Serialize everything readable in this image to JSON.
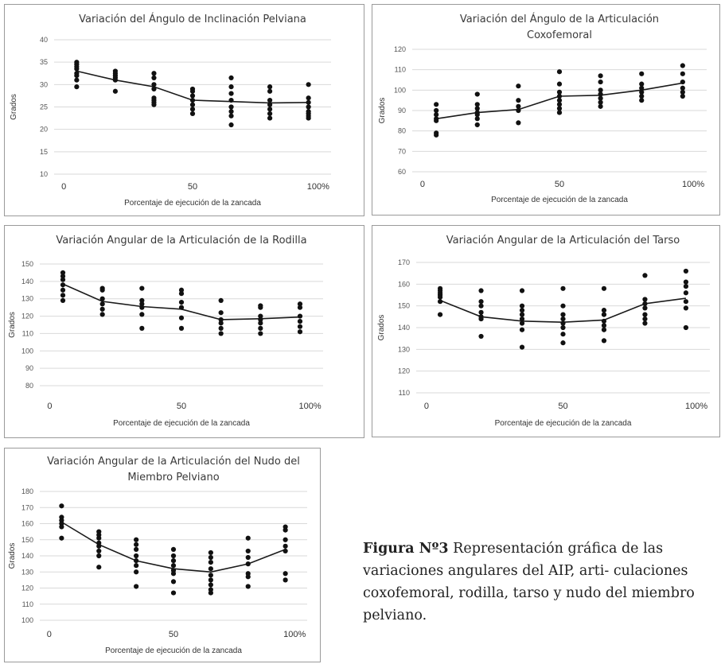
{
  "caption": {
    "label": "Figura Nº3",
    "text": " Representación gráfica de las variaciones angulares del AIP, arti- culaciones coxofemoral, rodilla, tarso y nudo del miembro pelviano."
  },
  "chart_data": [
    {
      "type": "scatter",
      "title": [
        "Variación del Ángulo de Inclinación Pelviana"
      ],
      "xlabel": "Porcentaje de ejecución de la zancada",
      "ylabel": "Grados",
      "xticks": [
        "0",
        "50",
        "100%"
      ],
      "ylim": [
        10,
        40
      ],
      "ystep": 5,
      "x": [
        5,
        20,
        35,
        50,
        65,
        80,
        95
      ],
      "points": [
        [
          35,
          34.5,
          34,
          33.5,
          32.5,
          32,
          31,
          29.5
        ],
        [
          33,
          32.5,
          32,
          31.5,
          31,
          28.5
        ],
        [
          32.5,
          31.5,
          30,
          29,
          27,
          26.5,
          26,
          25.5
        ],
        [
          29,
          28.5,
          27.5,
          26.5,
          25.5,
          24.5,
          23.5
        ],
        [
          31.5,
          29.5,
          28,
          26.5,
          25,
          24,
          23,
          21
        ],
        [
          29.5,
          28.5,
          26.5,
          25.5,
          24.5,
          23.5,
          22.5
        ],
        [
          30,
          27,
          26,
          25,
          24,
          23.5,
          23,
          22.5
        ]
      ],
      "trend": [
        33,
        31,
        29.5,
        26.5,
        26.2,
        25.9,
        26
      ]
    },
    {
      "type": "scatter",
      "title": [
        "Variación del Ángulo de la Articulación",
        "Coxofemoral"
      ],
      "xlabel": "Porcentaje de ejecución de la zancada",
      "ylabel": "Grados",
      "xticks": [
        "0",
        "50",
        "100%"
      ],
      "ylim": [
        60,
        120
      ],
      "ystep": 10,
      "x": [
        5,
        20,
        35,
        50,
        65,
        80,
        95
      ],
      "points": [
        [
          93,
          90,
          88,
          86,
          85,
          79,
          78
        ],
        [
          98,
          93,
          91,
          89,
          88,
          86,
          83
        ],
        [
          102,
          95,
          92,
          90,
          84
        ],
        [
          109,
          103,
          99,
          97,
          95,
          93,
          91,
          89
        ],
        [
          107,
          104,
          100,
          98,
          96,
          94,
          92
        ],
        [
          108,
          103,
          101,
          99,
          97,
          95
        ],
        [
          112,
          108,
          104,
          101,
          99,
          97
        ]
      ],
      "trend": [
        86,
        89,
        90.5,
        97,
        97.5,
        100,
        103.5
      ]
    },
    {
      "type": "scatter",
      "title": [
        "Variación Angular de la Articulación de la Rodilla"
      ],
      "xlabel": "Porcentaje de ejecución de la zancada",
      "ylabel": "Grados",
      "xticks": [
        "0",
        "50",
        "100%"
      ],
      "ylim": [
        80,
        150
      ],
      "ystep": 10,
      "x": [
        5,
        20,
        35,
        50,
        65,
        80,
        95
      ],
      "points": [
        [
          145,
          143,
          141,
          138,
          135,
          132,
          129
        ],
        [
          136,
          135,
          130,
          127,
          124,
          121
        ],
        [
          136,
          129,
          127,
          125,
          121,
          113
        ],
        [
          135,
          133,
          128,
          125,
          119,
          113
        ],
        [
          129,
          122,
          118,
          116,
          113,
          110
        ],
        [
          126,
          125,
          120,
          118,
          116,
          113,
          110
        ],
        [
          127,
          125,
          120,
          117,
          114,
          111
        ]
      ],
      "trend": [
        138.5,
        128.5,
        125.5,
        124,
        118,
        118.5,
        119.5
      ]
    },
    {
      "type": "scatter",
      "title": [
        "Variación Angular de la Articulación del Tarso"
      ],
      "xlabel": "Porcentaje de ejecución de la zancada",
      "ylabel": "Grados",
      "xticks": [
        "0",
        "50",
        "100%"
      ],
      "ylim": [
        110,
        170
      ],
      "ystep": 10,
      "x": [
        5,
        20,
        35,
        50,
        65,
        80,
        95
      ],
      "points": [
        [
          158,
          157,
          156,
          155,
          154,
          152,
          146
        ],
        [
          157,
          152,
          150,
          147,
          145,
          144,
          136
        ],
        [
          157,
          150,
          148,
          146,
          144,
          142,
          139,
          131
        ],
        [
          158,
          150,
          146,
          144,
          142,
          140,
          137,
          133
        ],
        [
          158,
          148,
          146,
          143,
          141,
          139,
          134
        ],
        [
          164,
          153,
          151,
          149,
          146,
          144,
          142
        ],
        [
          166,
          161,
          159,
          156,
          152,
          149,
          140
        ]
      ],
      "trend": [
        152.5,
        145,
        143,
        142.5,
        143.5,
        151,
        153.5
      ]
    },
    {
      "type": "scatter",
      "title": [
        "Variación Angular de la Articulación del Nudo del",
        "Miembro Pelviano"
      ],
      "xlabel": "Porcentaje de ejecución de la zancada",
      "ylabel": "Grados",
      "xticks": [
        "0",
        "50",
        "100%"
      ],
      "ylim": [
        100,
        180
      ],
      "ystep": 10,
      "x": [
        5,
        20,
        35,
        50,
        65,
        80,
        95
      ],
      "points": [
        [
          171,
          164,
          162,
          160,
          158,
          151
        ],
        [
          155,
          153,
          151,
          148,
          146,
          143,
          140,
          133
        ],
        [
          150,
          147,
          144,
          140,
          137,
          134,
          130,
          121
        ],
        [
          144,
          140,
          137,
          134,
          131,
          129,
          124,
          117
        ],
        [
          142,
          139,
          136,
          132,
          128,
          125,
          122,
          119,
          117
        ],
        [
          151,
          143,
          139,
          135,
          129,
          127,
          121
        ],
        [
          158,
          156,
          150,
          146,
          143,
          129,
          125
        ]
      ],
      "trend": [
        161,
        147,
        137,
        132,
        130,
        135,
        144
      ]
    }
  ]
}
